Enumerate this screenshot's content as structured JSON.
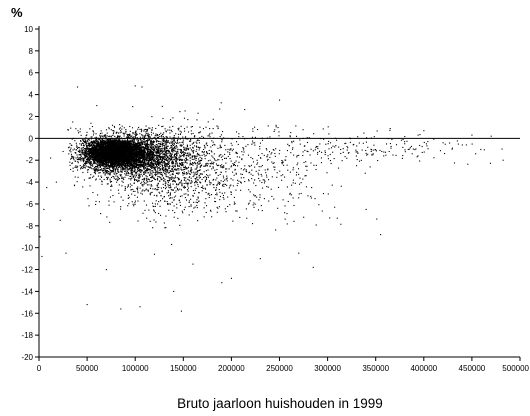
{
  "chart_data": {
    "type": "scatter",
    "title": "",
    "xlabel": "Bruto jaarloon huishouden in 1999",
    "ylabel": "%",
    "xlim": [
      0,
      500000
    ],
    "ylim": [
      -20,
      10
    ],
    "x_ticks": [
      0,
      50000,
      100000,
      150000,
      200000,
      250000,
      300000,
      350000,
      400000,
      450000,
      500000
    ],
    "x_tick_labels": [
      "0",
      "50000",
      "100000",
      "150000",
      "200000",
      "250000",
      "300000",
      "350000",
      "400000",
      "450000",
      "500000"
    ],
    "y_ticks": [
      10,
      8,
      6,
      4,
      2,
      0,
      -2,
      -4,
      -6,
      -8,
      -10,
      -12,
      -14,
      -16,
      -18,
      -20
    ],
    "y_tick_labels": [
      "10",
      "8",
      "6",
      "4",
      "2",
      "0",
      "-2",
      "-4",
      "-6",
      "-8",
      "-10",
      "-12",
      "-14",
      "-16",
      "-18",
      "-20"
    ],
    "reference_line_y": 0,
    "grid": false,
    "legend": "none",
    "series": [
      {
        "marker_color": "#000000",
        "clusters": [
          {
            "x_mean": 78000,
            "x_sd": 14000,
            "y_mean": -1.3,
            "y_sd": 0.55,
            "count": 4200
          },
          {
            "x_mean": 95000,
            "x_sd": 26000,
            "y_mean": -1.6,
            "y_sd": 1.0,
            "count": 2600
          },
          {
            "x_mean": 135000,
            "x_sd": 38000,
            "y_mean": -2.6,
            "y_sd": 2.1,
            "count": 1300
          },
          {
            "x_mean": 215000,
            "x_sd": 50000,
            "y_mean": -2.6,
            "y_sd": 2.3,
            "count": 450
          },
          {
            "x_mean": 340000,
            "x_sd": 55000,
            "y_mean": -0.9,
            "y_sd": 0.7,
            "count": 170
          }
        ],
        "points": [
          [
            1000,
            -9
          ],
          [
            3000,
            -10.8
          ],
          [
            5000,
            -6.5
          ],
          [
            8000,
            -4.5
          ],
          [
            12000,
            -1.8
          ],
          [
            18000,
            -4
          ],
          [
            22000,
            -7.5
          ],
          [
            28000,
            -10.5
          ],
          [
            40000,
            4.7
          ],
          [
            50000,
            -15.2
          ],
          [
            85000,
            -15.6
          ],
          [
            107000,
            4.7
          ],
          [
            100000,
            4.8
          ],
          [
            105000,
            -15.4
          ],
          [
            140000,
            -14
          ],
          [
            148000,
            -15.8
          ],
          [
            200000,
            -12.8
          ],
          [
            250000,
            3.5
          ],
          [
            285000,
            -11.8
          ],
          [
            355000,
            -8.8
          ],
          [
            330000,
            -2.5
          ],
          [
            340000,
            -6.5
          ],
          [
            365000,
            0.9
          ],
          [
            400000,
            0.7
          ],
          [
            450000,
            0.3
          ],
          [
            470000,
            0.2
          ],
          [
            440000,
            -0.6
          ],
          [
            420000,
            -0.4
          ],
          [
            380000,
            -0.3
          ],
          [
            310000,
            -7.3
          ],
          [
            270000,
            -10.5
          ],
          [
            230000,
            -11
          ],
          [
            190000,
            -13.2
          ],
          [
            160000,
            -11.5
          ],
          [
            120000,
            -10.6
          ],
          [
            70000,
            -12
          ],
          [
            60000,
            3
          ],
          [
            35000,
            1.5
          ],
          [
            30000,
            0.8
          ],
          [
            25000,
            -1.2
          ]
        ]
      }
    ]
  }
}
